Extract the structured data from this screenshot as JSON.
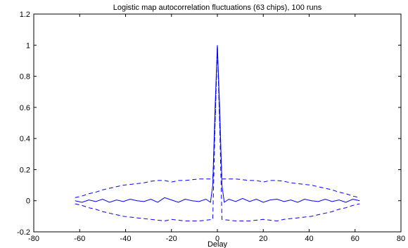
{
  "chart_data": {
    "type": "line",
    "title": "Logistic map autocorrelation fluctuations (63 chips), 100 runs",
    "xlabel": "Delay",
    "ylabel": "",
    "xlim": [
      -80,
      80
    ],
    "ylim": [
      -0.2,
      1.2
    ],
    "xticks": [
      -80,
      -60,
      -40,
      -20,
      0,
      20,
      40,
      60,
      80
    ],
    "yticks": [
      -0.2,
      0,
      0.2,
      0.4,
      0.6,
      0.8,
      1,
      1.2
    ],
    "xtick_labels": [
      "-80",
      "-60",
      "-40",
      "-20",
      "0",
      "20",
      "40",
      "60",
      "80"
    ],
    "ytick_labels": [
      "-0.2",
      "0",
      "0.2",
      "0.4",
      "0.6",
      "0.8",
      "1",
      "1.2"
    ],
    "grid": false,
    "series": [
      {
        "style": "solid",
        "color": "#0000ff",
        "x": [
          -62,
          -59,
          -56,
          -53,
          -50,
          -47,
          -44,
          -41,
          -38,
          -35,
          -32,
          -29,
          -26,
          -23,
          -20,
          -17,
          -14,
          -11,
          -8,
          -5,
          -3,
          -2,
          -1,
          0,
          1,
          2,
          3,
          5,
          8,
          11,
          14,
          17,
          20,
          23,
          26,
          29,
          32,
          35,
          38,
          41,
          44,
          47,
          50,
          53,
          56,
          59,
          62
        ],
        "y": [
          0.0,
          -0.01,
          0.005,
          -0.005,
          0.01,
          -0.01,
          0.005,
          -0.005,
          0.01,
          0.0,
          -0.005,
          0.01,
          -0.01,
          0.02,
          0.005,
          -0.01,
          0.01,
          0.0,
          -0.005,
          0.01,
          -0.01,
          0.1,
          0.6,
          1.0,
          0.6,
          0.1,
          -0.01,
          0.01,
          -0.005,
          0.015,
          -0.005,
          0.01,
          -0.01,
          0.005,
          0.01,
          -0.005,
          0.005,
          -0.01,
          0.01,
          0.0,
          -0.005,
          0.01,
          -0.005,
          0.005,
          -0.01,
          0.01,
          0.0
        ]
      },
      {
        "style": "dashed",
        "color": "#0000ff",
        "x": [
          -62,
          -59,
          -56,
          -53,
          -50,
          -47,
          -44,
          -41,
          -38,
          -35,
          -32,
          -29,
          -26,
          -23,
          -20,
          -17,
          -14,
          -11,
          -8,
          -5,
          -2,
          -1,
          0,
          1,
          2,
          5,
          8,
          11,
          14,
          17,
          20,
          23,
          26,
          29,
          32,
          35,
          38,
          41,
          44,
          47,
          50,
          53,
          56,
          59,
          62
        ],
        "y": [
          0.02,
          0.03,
          0.045,
          0.055,
          0.07,
          0.08,
          0.09,
          0.1,
          0.105,
          0.11,
          0.115,
          0.125,
          0.13,
          0.13,
          0.12,
          0.13,
          0.13,
          0.135,
          0.14,
          0.14,
          0.14,
          0.5,
          1.0,
          0.5,
          0.14,
          0.14,
          0.14,
          0.135,
          0.13,
          0.13,
          0.12,
          0.13,
          0.13,
          0.125,
          0.115,
          0.11,
          0.105,
          0.1,
          0.09,
          0.08,
          0.07,
          0.055,
          0.045,
          0.03,
          0.02
        ]
      },
      {
        "style": "dashed",
        "color": "#0000ff",
        "x": [
          -62,
          -59,
          -56,
          -53,
          -50,
          -47,
          -44,
          -41,
          -38,
          -35,
          -32,
          -29,
          -26,
          -23,
          -20,
          -17,
          -14,
          -11,
          -8,
          -5,
          -2,
          -1,
          0,
          1,
          2,
          5,
          8,
          11,
          14,
          17,
          20,
          23,
          26,
          29,
          32,
          35,
          38,
          41,
          44,
          47,
          50,
          53,
          56,
          59,
          62
        ],
        "y": [
          -0.02,
          -0.03,
          -0.045,
          -0.055,
          -0.07,
          -0.08,
          -0.09,
          -0.1,
          -0.105,
          -0.11,
          -0.115,
          -0.12,
          -0.125,
          -0.13,
          -0.12,
          -0.125,
          -0.13,
          -0.13,
          -0.13,
          -0.125,
          -0.12,
          0.5,
          1.0,
          0.5,
          -0.12,
          -0.125,
          -0.13,
          -0.13,
          -0.13,
          -0.125,
          -0.12,
          -0.125,
          -0.13,
          -0.12,
          -0.115,
          -0.11,
          -0.105,
          -0.1,
          -0.09,
          -0.08,
          -0.07,
          -0.055,
          -0.045,
          -0.03,
          -0.02
        ]
      }
    ]
  }
}
